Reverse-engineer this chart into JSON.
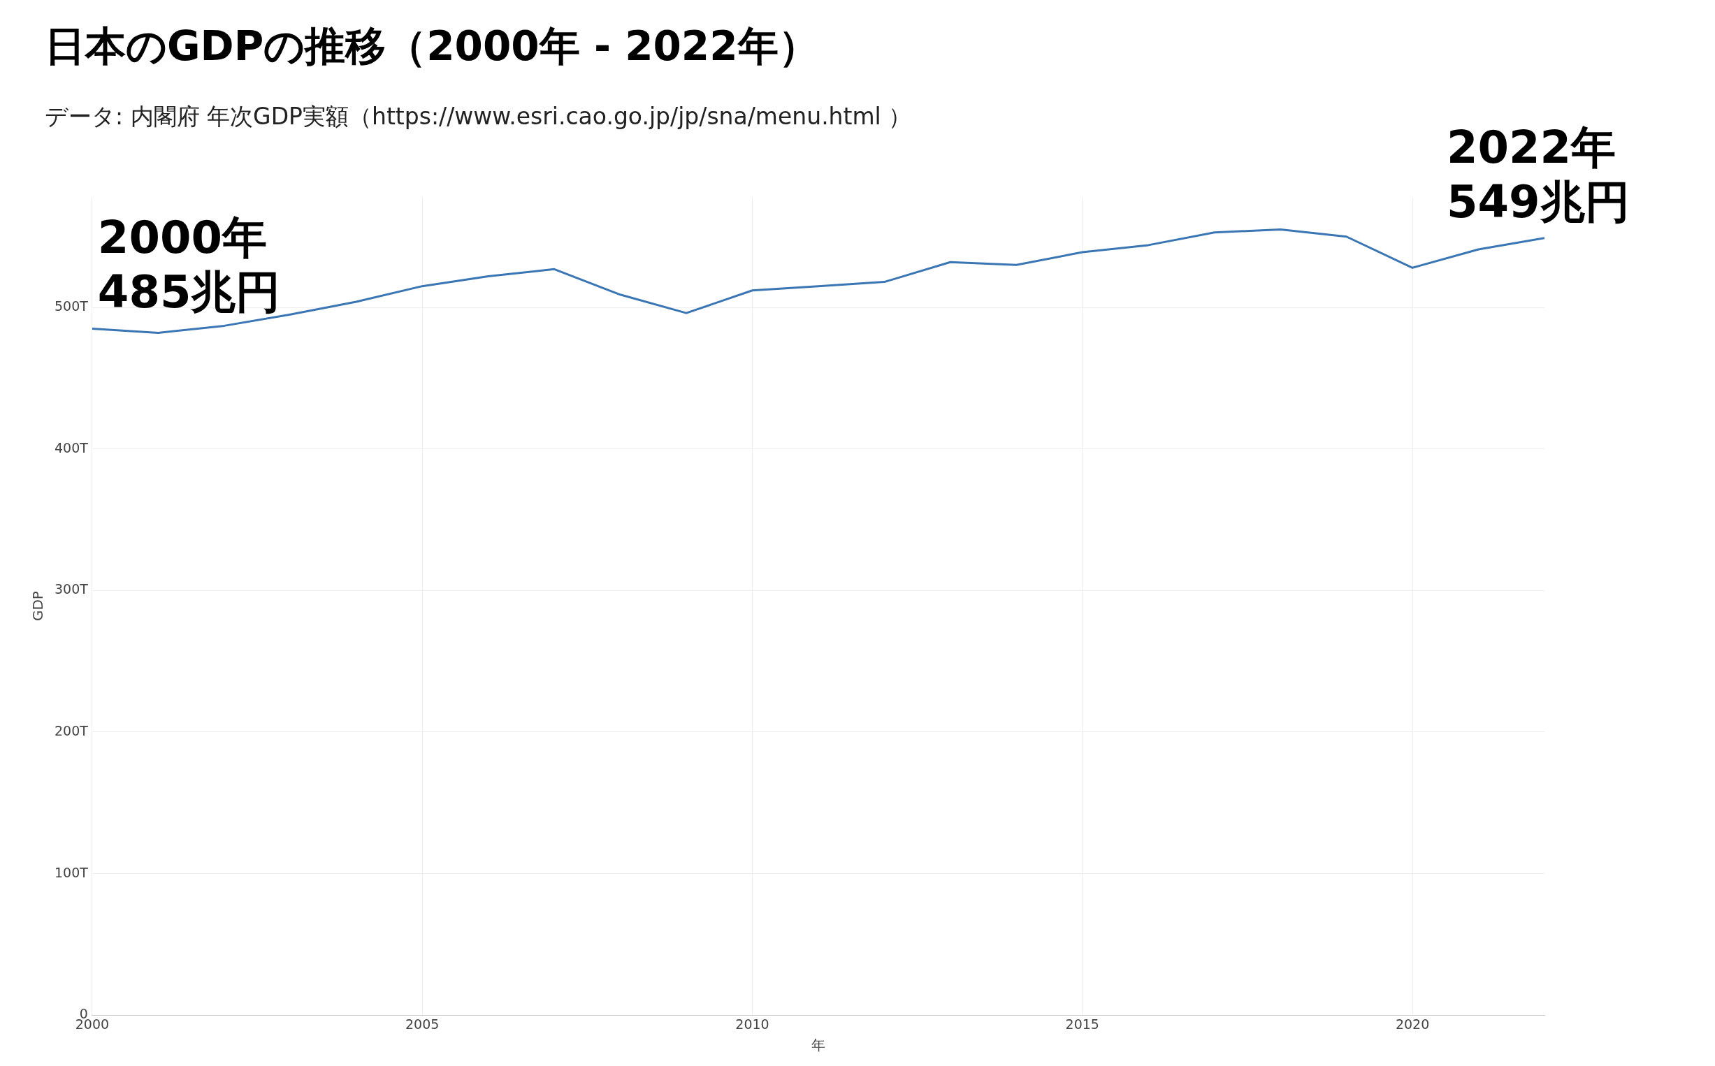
{
  "chart_data": {
    "type": "line",
    "title": "日本のGDPの推移（2000年 - 2022年）",
    "subtitle": "データ: 内閣府 年次GDP実額（https://www.esri.cao.go.jp/jp/sna/menu.html ）",
    "xlabel": "年",
    "ylabel": "GDP",
    "x": [
      2000,
      2001,
      2002,
      2003,
      2004,
      2005,
      2006,
      2007,
      2008,
      2009,
      2010,
      2011,
      2012,
      2013,
      2014,
      2015,
      2016,
      2017,
      2018,
      2019,
      2020,
      2021,
      2022
    ],
    "series": [
      {
        "color": "#3a75b4",
        "values": [
          485,
          482,
          487,
          495,
          504,
          515,
          522,
          527,
          509,
          496,
          512,
          515,
          518,
          532,
          530,
          539,
          544,
          553,
          555,
          550,
          528,
          541,
          549
        ]
      }
    ],
    "xlim": [
      2000,
      2022
    ],
    "xticks": [
      2000,
      2005,
      2010,
      2015,
      2020
    ],
    "ylim": [
      0,
      578
    ],
    "yticks": [
      0,
      {
        "value": 100,
        "label": "100T"
      },
      {
        "value": 200,
        "label": "200T"
      },
      {
        "value": 300,
        "label": "300T"
      },
      {
        "value": 400,
        "label": "400T"
      },
      {
        "value": 500,
        "label": "500T"
      }
    ],
    "annotations": [
      {
        "text": "2000年\n485兆円",
        "x": 2000,
        "y": 485
      },
      {
        "text": "2022年\n549兆円",
        "x": 2022,
        "y": 549
      }
    ],
    "grid": true,
    "legend": false,
    "marker": "none",
    "line_style": "solid"
  }
}
